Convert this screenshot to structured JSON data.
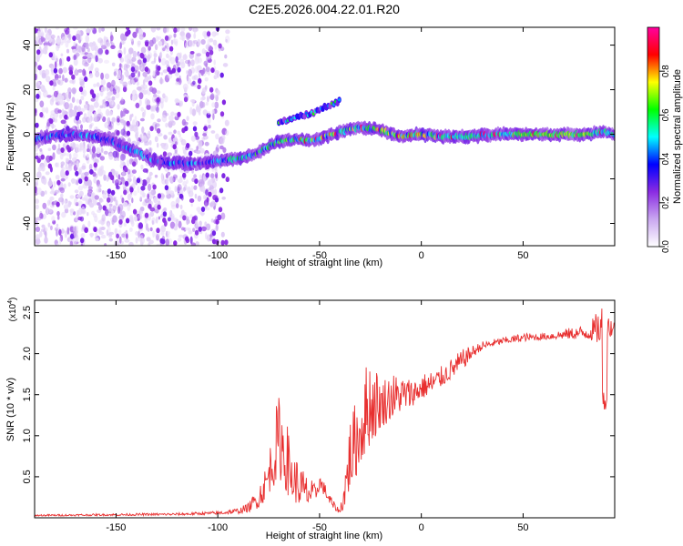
{
  "title": "C2E5.2026.004.22.01.R20",
  "chart_data": [
    {
      "type": "heatmap",
      "name": "spectrogram",
      "xlabel": "Height of straight line (km)",
      "ylabel": "Frequency (Hz)",
      "xlim": [
        -190,
        95
      ],
      "ylim": [
        -50,
        48
      ],
      "xticks": [
        -150,
        -100,
        -50,
        0,
        50
      ],
      "yticks": [
        -40,
        -20,
        0,
        20,
        40
      ],
      "colorbar": {
        "label": "Normalized spectral amplitude",
        "range": [
          0,
          1
        ],
        "ticks": [
          0.0,
          0.2,
          0.4,
          0.6,
          0.8
        ],
        "tick_labels": [
          "0.0",
          "0.2",
          "0.4",
          "0.6",
          "0.8"
        ],
        "colors": [
          "#ffffff",
          "#c9a7f0",
          "#8a2be2",
          "#0000ff",
          "#00ffff",
          "#00ff00",
          "#ffff00",
          "#ff0000",
          "#ff00a0"
        ]
      },
      "ridge": {
        "x": [
          -190,
          -175,
          -160,
          -150,
          -140,
          -130,
          -120,
          -110,
          -100,
          -90,
          -80,
          -70,
          -60,
          -55,
          -50,
          -40,
          -30,
          -20,
          -10,
          0,
          10,
          20,
          40,
          60,
          80,
          90,
          95
        ],
        "y": [
          -2,
          0,
          -1,
          -4,
          -8,
          -12,
          -13,
          -13,
          -12,
          -11,
          -8,
          -3,
          -2,
          -3,
          -2,
          1,
          3,
          2,
          -1,
          0,
          -1,
          -1,
          0,
          0,
          0,
          1,
          0
        ]
      },
      "upper_branch": {
        "x": [
          -70,
          -65,
          -60,
          -55,
          -50,
          -45,
          -40
        ],
        "y": [
          5,
          7,
          8,
          9,
          11,
          13,
          15
        ]
      }
    },
    {
      "type": "line",
      "name": "snr",
      "xlabel": "Height of straight line (km)",
      "ylabel": "SNR (10 * v/v)",
      "scale_label": "(x10",
      "scale_exp": "4",
      "scale_close": ")",
      "xlim": [
        -190,
        95
      ],
      "ylim": [
        0,
        2.65
      ],
      "xticks": [
        -150,
        -100,
        -50,
        0,
        50
      ],
      "yticks": [
        0.5,
        1.0,
        1.5,
        2.0,
        2.5
      ],
      "ytick_labels": [
        "0.5",
        "1.0",
        "1.5",
        "2.0",
        "2.5"
      ],
      "color": "#e83030",
      "envelope": {
        "x": [
          -190,
          -120,
          -100,
          -90,
          -85,
          -80,
          -77,
          -75,
          -72,
          -70,
          -68,
          -66,
          -65,
          -63,
          -60,
          -57,
          -55,
          -52,
          -50,
          -47,
          -45,
          -43,
          -40,
          -38,
          -35,
          -32,
          -30,
          -27,
          -25,
          -22,
          -20,
          -17,
          -15,
          -12,
          -10,
          -5,
          0,
          5,
          10,
          15,
          20,
          25,
          30,
          40,
          50,
          60,
          70,
          80,
          85,
          88,
          90,
          92,
          95
        ],
        "base": [
          0.02,
          0.03,
          0.04,
          0.05,
          0.07,
          0.12,
          0.2,
          0.3,
          0.4,
          0.5,
          0.4,
          0.3,
          0.25,
          0.2,
          0.15,
          0.12,
          0.15,
          0.2,
          0.35,
          0.25,
          0.15,
          0.1,
          0.05,
          0.1,
          0.35,
          0.5,
          0.65,
          0.8,
          0.9,
          1.0,
          1.1,
          1.15,
          1.2,
          1.25,
          1.3,
          1.35,
          1.45,
          1.5,
          1.6,
          1.7,
          1.8,
          1.95,
          2.05,
          2.12,
          2.15,
          2.17,
          2.18,
          2.18,
          2.15,
          2.1,
          2.1,
          2.2,
          2.2
        ],
        "peak": [
          0.04,
          0.06,
          0.08,
          0.12,
          0.18,
          0.4,
          0.6,
          0.8,
          1.3,
          1.5,
          1.45,
          1.2,
          1.0,
          0.8,
          0.7,
          0.55,
          0.5,
          0.4,
          0.55,
          0.4,
          0.3,
          0.2,
          0.1,
          0.5,
          1.25,
          1.45,
          1.55,
          1.9,
          2.0,
          1.85,
          1.7,
          1.75,
          1.8,
          1.75,
          1.75,
          1.7,
          1.75,
          1.8,
          1.85,
          1.95,
          2.05,
          2.1,
          2.15,
          2.2,
          2.25,
          2.25,
          2.3,
          2.35,
          2.45,
          2.6,
          2.68,
          2.5,
          2.45
        ],
        "dip_at": 90,
        "dip_min": 1.32
      }
    }
  ]
}
